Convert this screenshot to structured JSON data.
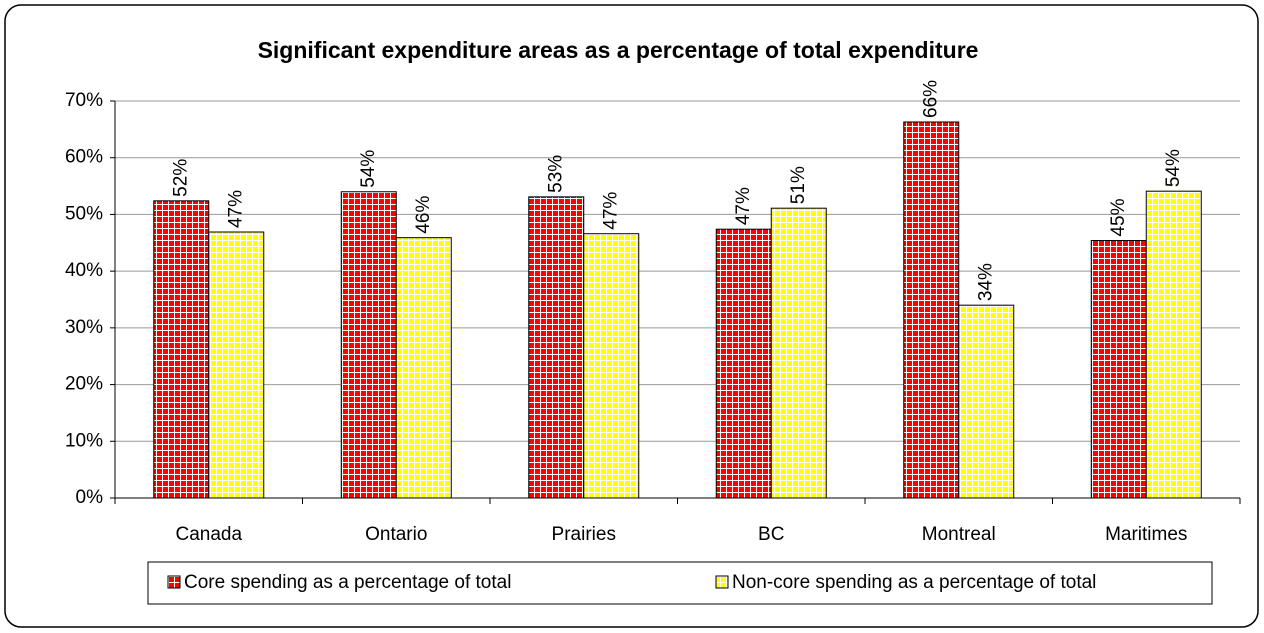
{
  "chart_data": {
    "type": "bar",
    "title": "Significant expenditure areas as a percentage of total expenditure",
    "categories": [
      "Canada",
      "Ontario",
      "Prairies",
      "BC",
      "Montreal",
      "Maritimes"
    ],
    "series": [
      {
        "name": "Core spending as a percentage of total",
        "color": "#ff0000",
        "values": [
          52.4,
          54,
          53.1,
          47.4,
          66.3,
          45.4
        ],
        "value_labels": [
          "52%",
          "54%",
          "53%",
          "47%",
          "66%",
          "45%"
        ]
      },
      {
        "name": "Non-core spending as a percentage of total",
        "color": "#ffff00",
        "values": [
          46.9,
          45.9,
          46.6,
          51.1,
          34,
          54.1
        ],
        "value_labels": [
          "47%",
          "46%",
          "47%",
          "51%",
          "34%",
          "54%"
        ]
      }
    ],
    "ylim": [
      0,
      70
    ],
    "yticks": [
      {
        "value": 0,
        "label": "0%"
      },
      {
        "value": 10,
        "label": "10%"
      },
      {
        "value": 20,
        "label": "20%"
      },
      {
        "value": 30,
        "label": "30%"
      },
      {
        "value": 40,
        "label": "40%"
      },
      {
        "value": 50,
        "label": "50%"
      },
      {
        "value": 60,
        "label": "60%"
      },
      {
        "value": 70,
        "label": "70%"
      }
    ],
    "grid": true,
    "legend": "bottom"
  }
}
